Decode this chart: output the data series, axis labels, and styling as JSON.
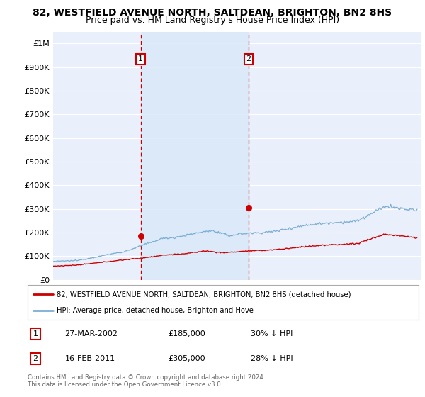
{
  "title": "82, WESTFIELD AVENUE NORTH, SALTDEAN, BRIGHTON, BN2 8HS",
  "subtitle": "Price paid vs. HM Land Registry's House Price Index (HPI)",
  "title_fontsize": 10,
  "subtitle_fontsize": 9,
  "ylabel_ticks": [
    "£0",
    "£100K",
    "£200K",
    "£300K",
    "£400K",
    "£500K",
    "£600K",
    "£700K",
    "£800K",
    "£900K",
    "£1M"
  ],
  "ytick_values": [
    0,
    100000,
    200000,
    300000,
    400000,
    500000,
    600000,
    700000,
    800000,
    900000,
    1000000
  ],
  "ylim": [
    0,
    1050000
  ],
  "xlim_start": 1995.0,
  "xlim_end": 2025.3,
  "legend_line1": "82, WESTFIELD AVENUE NORTH, SALTDEAN, BRIGHTON, BN2 8HS (detached house)",
  "legend_line2": "HPI: Average price, detached house, Brighton and Hove",
  "line1_color": "#cc0000",
  "line2_color": "#7aadd4",
  "vline1_x": 2002.22,
  "vline2_x": 2011.12,
  "vline_color": "#cc0000",
  "shade_color": "#d8e8f8",
  "point1_x": 2002.22,
  "point1_y": 185000,
  "point2_x": 2011.12,
  "point2_y": 305000,
  "table_row1": [
    "1",
    "27-MAR-2002",
    "£185,000",
    "30% ↓ HPI"
  ],
  "table_row2": [
    "2",
    "16-FEB-2011",
    "£305,000",
    "28% ↓ HPI"
  ],
  "footer": "Contains HM Land Registry data © Crown copyright and database right 2024.\nThis data is licensed under the Open Government Licence v3.0.",
  "background_color": "#ffffff",
  "plot_bg_color": "#eaf0fb",
  "grid_color": "#ffffff"
}
